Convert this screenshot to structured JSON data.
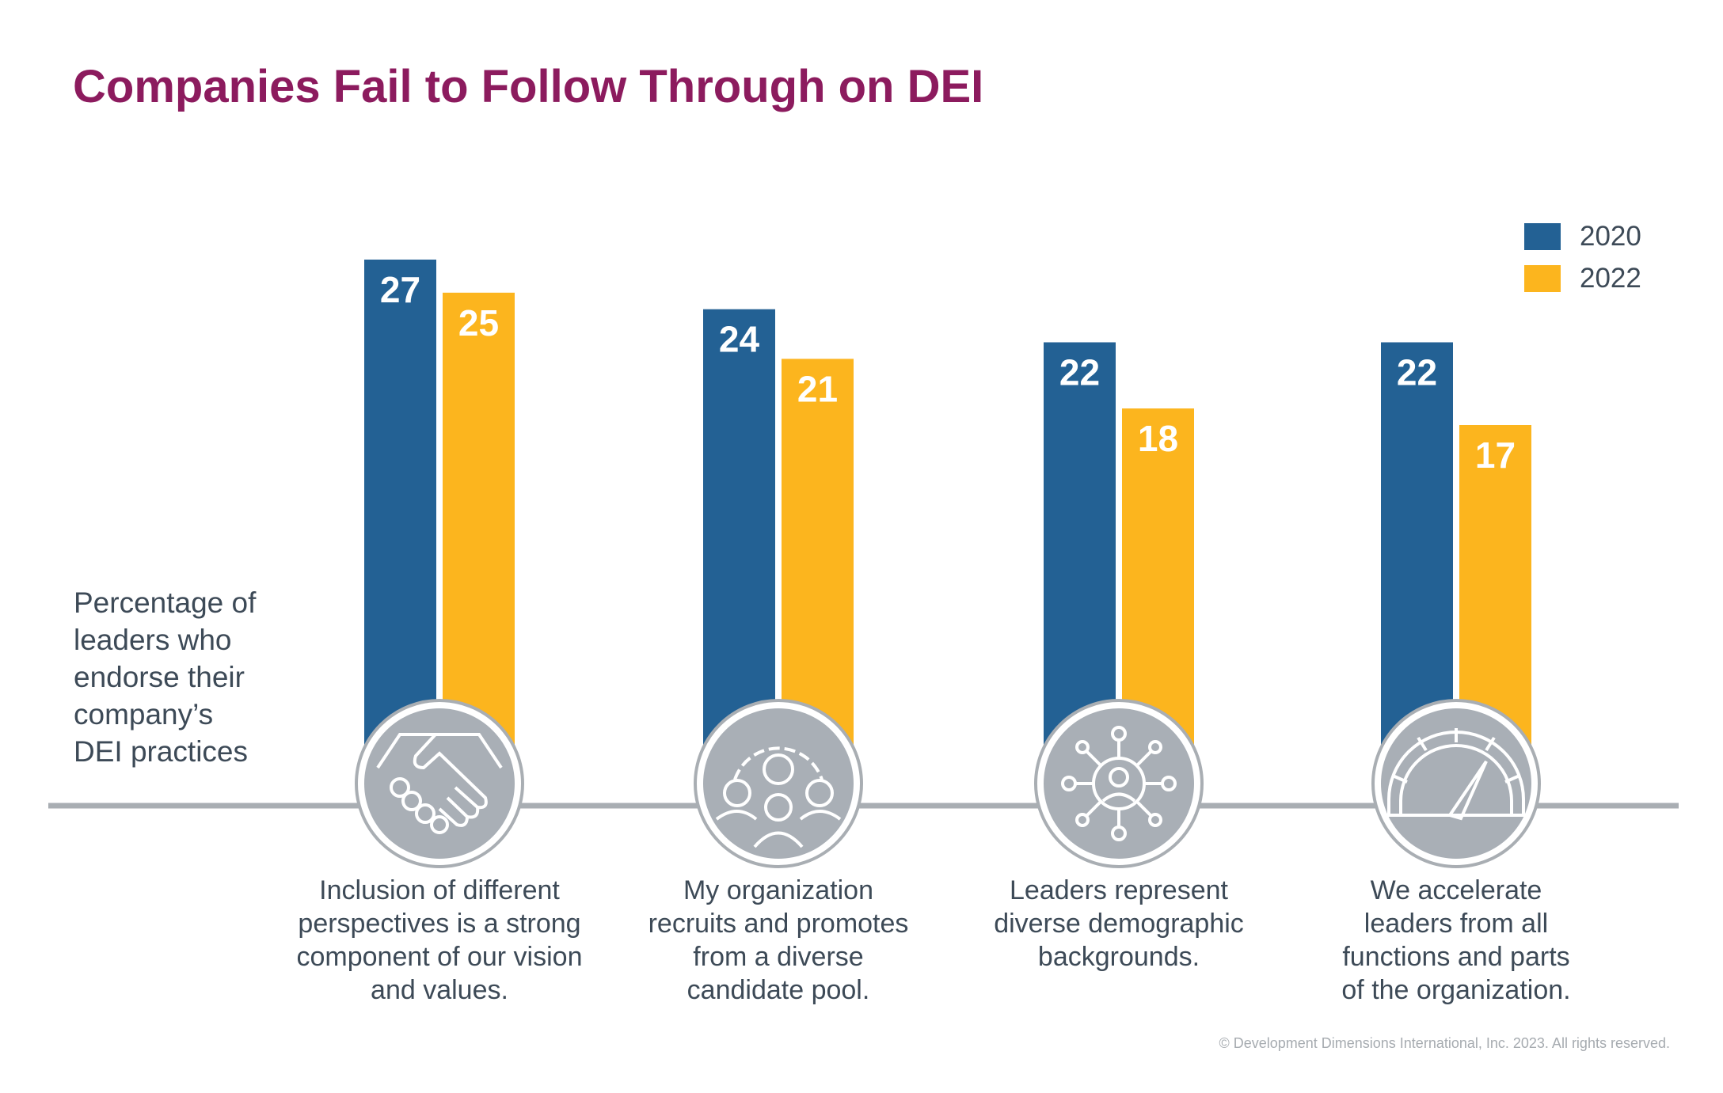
{
  "chart_data": {
    "type": "bar",
    "title": "Companies Fail to Follow Through on DEI",
    "ylabel": "Percentage of leaders who endorse their company’s DEI practices",
    "ylabel_lines": [
      "Percentage of",
      "leaders who",
      "endorse their",
      "company’s",
      "DEI practices"
    ],
    "categories": [
      "Inclusion of different perspectives is a strong component of our vision and values.",
      "My organization recruits and promotes from a diverse candidate pool.",
      "Leaders represent diverse demographic backgrounds.",
      "We accelerate leaders from all functions and parts of the organization."
    ],
    "category_lines": [
      [
        "Inclusion of different",
        "perspectives is a strong",
        "component of our vision",
        "and values."
      ],
      [
        "My organization",
        "recruits and promotes",
        "from a diverse",
        "candidate pool."
      ],
      [
        "Leaders represent",
        "diverse demographic",
        "backgrounds."
      ],
      [
        "We accelerate",
        "leaders from all",
        "functions and parts",
        "of the organization."
      ]
    ],
    "category_icons": [
      "handshake-icon",
      "gear-people-icon",
      "network-person-icon",
      "speedometer-icon"
    ],
    "series": [
      {
        "name": "2020",
        "color": "#236194",
        "values": [
          27,
          24,
          22,
          22
        ]
      },
      {
        "name": "2022",
        "color": "#fcb51e",
        "values": [
          25,
          21,
          18,
          17
        ]
      }
    ],
    "legend_placement": "top-right",
    "data_labels": true,
    "grid": false
  },
  "footer": {
    "copyright": "© Development Dimensions International, Inc. 2023. All rights reserved."
  },
  "colors": {
    "title": "#8c1b5e",
    "text": "#3d4a57",
    "baseline": "#a9aeb3",
    "icon_fill": "#a9afb6"
  }
}
